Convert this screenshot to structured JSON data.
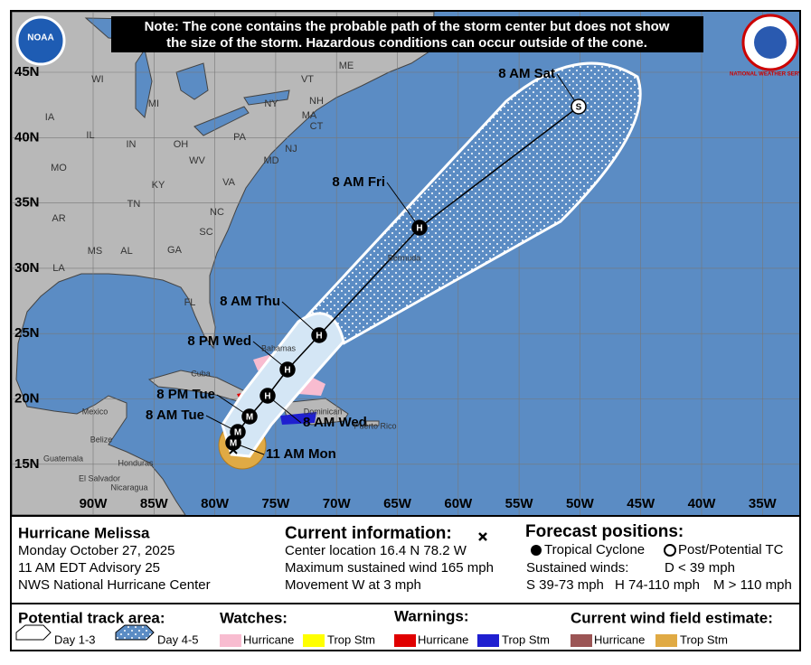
{
  "map": {
    "note_lines": [
      "Note: The cone contains the probable path of the storm center but does not show",
      "the size of the storm. Hazardous conditions can occur outside of the cone."
    ],
    "noaa_logo": "NOAA",
    "nws_logo": "NATIONAL WEATHER SERVICE",
    "lat_labels": [
      "45N",
      "40N",
      "35N",
      "30N",
      "25N",
      "20N",
      "15N"
    ],
    "lon_labels": [
      "90W",
      "85W",
      "80W",
      "75W",
      "70W",
      "65W",
      "60W",
      "55W",
      "50W",
      "45W",
      "40W",
      "35W"
    ],
    "state_labels": [
      "WI",
      "MI",
      "IA",
      "IL",
      "IN",
      "OH",
      "MO",
      "KY",
      "WV",
      "PA",
      "VA",
      "NY",
      "TN",
      "NC",
      "AR",
      "MS",
      "AL",
      "GA",
      "SC",
      "LA",
      "FL",
      "ME",
      "VT",
      "NH",
      "MA",
      "CT",
      "NJ",
      "MD"
    ],
    "place_labels": [
      "Bermuda",
      "Bahamas",
      "Cuba",
      "Mexico",
      "Belize",
      "Guatemala",
      "Honduras",
      "El Salvador",
      "Nicaragua",
      "Dominican",
      "Puerto Rico"
    ],
    "positions": [
      {
        "label": "11 AM Mon",
        "symbol": "M"
      },
      {
        "label": "8 AM Tue",
        "symbol": "M"
      },
      {
        "label": "8 PM Tue",
        "symbol": "M"
      },
      {
        "label": "8 AM Wed",
        "symbol": "H"
      },
      {
        "label": "8 PM Wed",
        "symbol": "H"
      },
      {
        "label": "8 AM Thu",
        "symbol": "H"
      },
      {
        "label": "8 AM Fri",
        "symbol": "H"
      },
      {
        "label": "8 AM Sat",
        "symbol": "S"
      }
    ]
  },
  "info": {
    "storm_name": "Hurricane Melissa",
    "date": "Monday October 27, 2025",
    "advisory": "11 AM EDT Advisory 25",
    "center": "NWS National Hurricane Center",
    "current_title": "Current information:",
    "center_location": "Center location 16.4 N 78.2 W",
    "max_wind": "Maximum sustained wind 165 mph",
    "movement": "Movement W at 3 mph",
    "forecast_title": "Forecast positions:",
    "tropical_cyclone": "Tropical Cyclone",
    "post_tc": "Post/Potential TC",
    "sustained_winds": "Sustained winds:",
    "d": "D < 39 mph",
    "s": "S 39-73 mph",
    "h": "H 74-110 mph",
    "m": "M > 110 mph"
  },
  "legend": {
    "track_title": "Potential track area:",
    "day13": "Day 1-3",
    "day45": "Day 4-5",
    "watches_title": "Watches:",
    "watch_hurricane": "Hurricane",
    "watch_ts": "Trop Stm",
    "warnings_title": "Warnings:",
    "warn_hurricane": "Hurricane",
    "warn_ts": "Trop Stm",
    "wind_title": "Current wind field estimate:",
    "wind_hurricane": "Hurricane",
    "wind_ts": "Trop Stm"
  }
}
